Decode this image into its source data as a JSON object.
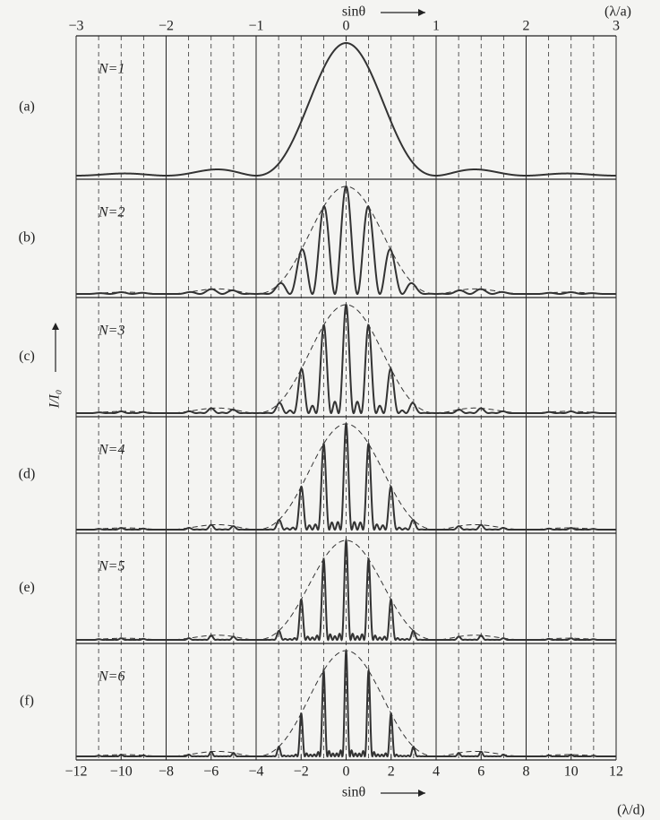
{
  "chart_data": {
    "type": "line",
    "xlabel": "sinθ",
    "xunit": "(λ/d)",
    "xlim": [
      -12,
      12
    ],
    "xticks": [
      {
        "value": -12,
        "label": "−12"
      },
      {
        "value": -10,
        "label": "−10"
      },
      {
        "value": -8,
        "label": "−8"
      },
      {
        "value": -6,
        "label": "−6"
      },
      {
        "value": -4,
        "label": "−4"
      },
      {
        "value": -2,
        "label": "−2"
      },
      0,
      2,
      4,
      6,
      8,
      10,
      12
    ],
    "x2label": "sinθ",
    "x2unit": "(λ/a)",
    "x2lim": [
      -3,
      3
    ],
    "x2ticks": [
      {
        "value": -3,
        "label": "−3"
      },
      {
        "value": -2,
        "label": "−2"
      },
      {
        "value": -1,
        "label": "−1"
      },
      0,
      1,
      2,
      3
    ],
    "ylabel": "I/I₀",
    "d_over_a": 4,
    "panels": [
      {
        "label": "(a)",
        "annotation": "N=1",
        "slits": 1,
        "envelope": false
      },
      {
        "label": "(b)",
        "annotation": "N=2",
        "slits": 2,
        "envelope": true
      },
      {
        "label": "(c)",
        "annotation": "N=3",
        "slits": 3,
        "envelope": true
      },
      {
        "label": "(d)",
        "annotation": "N=4",
        "slits": 4,
        "envelope": true
      },
      {
        "label": "(e)",
        "annotation": "N=5",
        "slits": 5,
        "envelope": true
      },
      {
        "label": "(f)",
        "annotation": "N=6",
        "slits": 6,
        "envelope": true
      }
    ]
  }
}
